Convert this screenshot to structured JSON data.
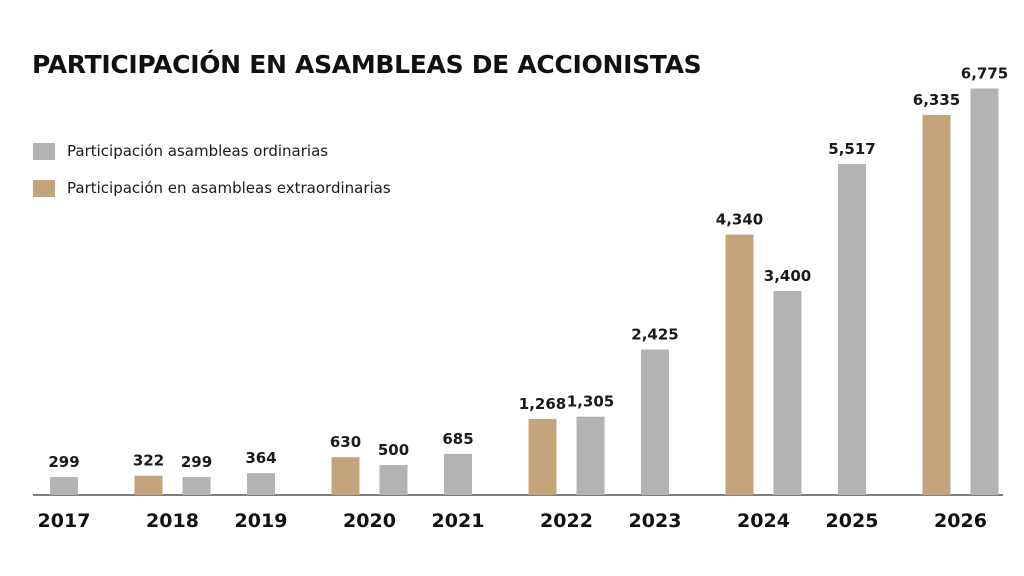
{
  "chart_data": {
    "type": "bar",
    "title": "PARTICIPACIÓN EN ASAMBLEAS DE ACCIONISTAS",
    "xlabel": "",
    "ylabel": "",
    "grid": false,
    "legend_position": "top-left",
    "categories": [
      "2017",
      "2018",
      "2019",
      "2020",
      "2021",
      "2022",
      "2023",
      "2024",
      "2025",
      "2026"
    ],
    "series": [
      {
        "name": "Participación asambleas ordinarias",
        "color": "#b3b3b3",
        "values": [
          299,
          299,
          364,
          500,
          685,
          1305,
          2425,
          3400,
          5517,
          6775
        ]
      },
      {
        "name": "Participación en asambleas extraordinarias",
        "color": "#c4a47b",
        "values": [
          null,
          322,
          null,
          630,
          null,
          1268,
          null,
          4340,
          null,
          6335
        ]
      }
    ],
    "value_labels": [
      "299",
      "322",
      "299",
      "364",
      "630",
      "500",
      "685",
      "1,268",
      "1,305",
      "2,425",
      "4,340",
      "3,400",
      "5,517",
      "6,335",
      "6,775"
    ],
    "ylim": [
      0,
      7000
    ]
  },
  "legend": [
    {
      "label": "Participación asambleas ordinarias",
      "color": "#b3b3b3"
    },
    {
      "label": "Participación en asambleas extraordinarias",
      "color": "#c4a47b"
    }
  ]
}
